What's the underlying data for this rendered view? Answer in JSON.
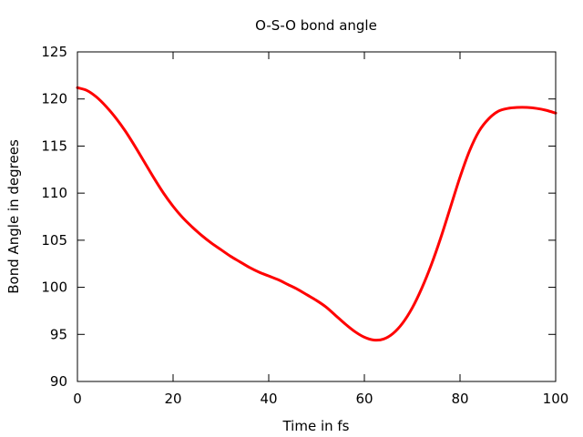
{
  "chart_data": {
    "type": "line",
    "title": "O-S-O bond angle",
    "xlabel": "Time in fs",
    "ylabel": "Bond Angle in degrees",
    "xlim": [
      0,
      100
    ],
    "ylim": [
      90,
      125
    ],
    "xticks": [
      0,
      20,
      40,
      60,
      80,
      100
    ],
    "yticks": [
      90,
      95,
      100,
      105,
      110,
      115,
      120,
      125
    ],
    "xtick_labels": [
      "0",
      "20",
      "40",
      "60",
      "80",
      "100"
    ],
    "ytick_labels": [
      "90",
      "95",
      "100",
      "105",
      "110",
      "115",
      "120",
      "125"
    ],
    "grid": false,
    "legend": "none",
    "series": [
      {
        "color": "#ff0000",
        "x": [
          0,
          2,
          4,
          6,
          8,
          10,
          12,
          14,
          16,
          18,
          20,
          22,
          24,
          26,
          28,
          30,
          32,
          34,
          36,
          38,
          40,
          42,
          44,
          46,
          48,
          50,
          52,
          54,
          56,
          58,
          60,
          62,
          64,
          66,
          68,
          70,
          72,
          74,
          76,
          78,
          80,
          82,
          84,
          86,
          88,
          90,
          92,
          94,
          96,
          98,
          100
        ],
        "y": [
          121.2,
          120.9,
          120.2,
          119.2,
          118.0,
          116.6,
          115.0,
          113.3,
          111.6,
          110.0,
          108.6,
          107.4,
          106.4,
          105.5,
          104.7,
          104.0,
          103.3,
          102.7,
          102.1,
          101.6,
          101.2,
          100.8,
          100.3,
          99.8,
          99.2,
          98.6,
          97.9,
          97.0,
          96.1,
          95.3,
          94.7,
          94.4,
          94.5,
          95.1,
          96.2,
          97.8,
          99.9,
          102.4,
          105.3,
          108.5,
          111.7,
          114.5,
          116.6,
          117.9,
          118.7,
          119.0,
          119.1,
          119.1,
          119.0,
          118.8,
          118.5
        ]
      }
    ]
  }
}
